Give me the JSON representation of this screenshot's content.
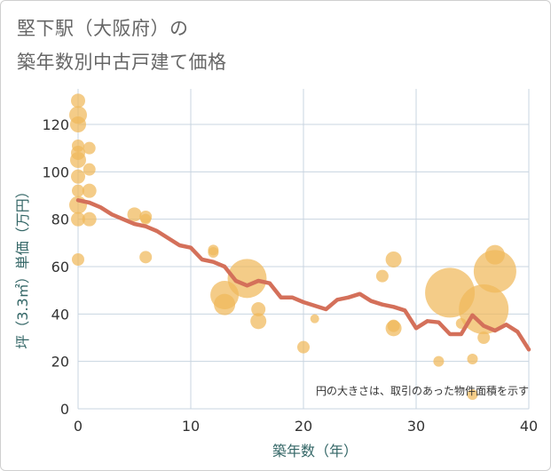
{
  "chart_data": {
    "type": "scatter",
    "title_line1": "堅下駅（大阪府）の",
    "title_line2": "築年数別中古戸建て価格",
    "xlabel": "築年数（年）",
    "ylabel": "坪（3.3㎡）単価（万円）",
    "xlim": [
      0,
      40
    ],
    "ylim": [
      0,
      135
    ],
    "xticks": [
      0,
      10,
      20,
      30,
      40
    ],
    "yticks": [
      0,
      20,
      40,
      60,
      80,
      100,
      120
    ],
    "note": "円の大きさは、取引のあった物件面積を示す",
    "colors": {
      "bubble": "#f0b85a",
      "line": "#d4705a",
      "grid": "#c8d4e0"
    },
    "bubbles": [
      {
        "x": 0,
        "y": 130,
        "s": 8
      },
      {
        "x": 0,
        "y": 124,
        "s": 10
      },
      {
        "x": 0,
        "y": 120,
        "s": 9
      },
      {
        "x": 0,
        "y": 111,
        "s": 7
      },
      {
        "x": 0,
        "y": 108,
        "s": 8
      },
      {
        "x": 0,
        "y": 105,
        "s": 9
      },
      {
        "x": 0,
        "y": 98,
        "s": 8
      },
      {
        "x": 0,
        "y": 92,
        "s": 7
      },
      {
        "x": 0,
        "y": 86,
        "s": 10
      },
      {
        "x": 0,
        "y": 80,
        "s": 8
      },
      {
        "x": 0,
        "y": 63,
        "s": 7
      },
      {
        "x": 1,
        "y": 110,
        "s": 7
      },
      {
        "x": 1,
        "y": 101,
        "s": 7
      },
      {
        "x": 1,
        "y": 92,
        "s": 8
      },
      {
        "x": 1,
        "y": 80,
        "s": 8
      },
      {
        "x": 5,
        "y": 82,
        "s": 8
      },
      {
        "x": 6,
        "y": 81,
        "s": 7
      },
      {
        "x": 6,
        "y": 80,
        "s": 6
      },
      {
        "x": 6,
        "y": 64,
        "s": 7
      },
      {
        "x": 12,
        "y": 67,
        "s": 6
      },
      {
        "x": 12,
        "y": 66,
        "s": 6
      },
      {
        "x": 13,
        "y": 48,
        "s": 16
      },
      {
        "x": 13,
        "y": 44,
        "s": 12
      },
      {
        "x": 15,
        "y": 55,
        "s": 22
      },
      {
        "x": 16,
        "y": 42,
        "s": 8
      },
      {
        "x": 16,
        "y": 37,
        "s": 9
      },
      {
        "x": 20,
        "y": 26,
        "s": 7
      },
      {
        "x": 21,
        "y": 38,
        "s": 5
      },
      {
        "x": 27,
        "y": 56,
        "s": 7
      },
      {
        "x": 28,
        "y": 63,
        "s": 9
      },
      {
        "x": 28,
        "y": 35,
        "s": 7
      },
      {
        "x": 28,
        "y": 34,
        "s": 9
      },
      {
        "x": 32,
        "y": 20,
        "s": 6
      },
      {
        "x": 33,
        "y": 49,
        "s": 28
      },
      {
        "x": 34,
        "y": 36,
        "s": 6
      },
      {
        "x": 35,
        "y": 21,
        "s": 6
      },
      {
        "x": 35,
        "y": 6,
        "s": 6
      },
      {
        "x": 36,
        "y": 30,
        "s": 7
      },
      {
        "x": 36,
        "y": 42,
        "s": 28
      },
      {
        "x": 37,
        "y": 58,
        "s": 24
      },
      {
        "x": 37,
        "y": 65,
        "s": 11
      }
    ],
    "line": [
      {
        "x": 0,
        "y": 88
      },
      {
        "x": 1,
        "y": 87
      },
      {
        "x": 2,
        "y": 85
      },
      {
        "x": 3,
        "y": 82
      },
      {
        "x": 4,
        "y": 80
      },
      {
        "x": 5,
        "y": 78
      },
      {
        "x": 6,
        "y": 77
      },
      {
        "x": 7,
        "y": 75
      },
      {
        "x": 8,
        "y": 72
      },
      {
        "x": 9,
        "y": 69
      },
      {
        "x": 10,
        "y": 68
      },
      {
        "x": 11,
        "y": 63
      },
      {
        "x": 12,
        "y": 62
      },
      {
        "x": 13,
        "y": 60
      },
      {
        "x": 14,
        "y": 54
      },
      {
        "x": 15,
        "y": 52
      },
      {
        "x": 16,
        "y": 54
      },
      {
        "x": 17,
        "y": 53
      },
      {
        "x": 18,
        "y": 47
      },
      {
        "x": 19,
        "y": 47
      },
      {
        "x": 20,
        "y": 45
      },
      {
        "x": 21,
        "y": 43.5
      },
      {
        "x": 22,
        "y": 42
      },
      {
        "x": 23,
        "y": 46
      },
      {
        "x": 24,
        "y": 47
      },
      {
        "x": 25,
        "y": 48.5
      },
      {
        "x": 26,
        "y": 45.5
      },
      {
        "x": 27,
        "y": 44
      },
      {
        "x": 28,
        "y": 43
      },
      {
        "x": 29,
        "y": 41.5
      },
      {
        "x": 30,
        "y": 34
      },
      {
        "x": 31,
        "y": 37
      },
      {
        "x": 32,
        "y": 36.5
      },
      {
        "x": 33,
        "y": 31.5
      },
      {
        "x": 34,
        "y": 31.5
      },
      {
        "x": 35,
        "y": 39.5
      },
      {
        "x": 36,
        "y": 35
      },
      {
        "x": 37,
        "y": 33
      },
      {
        "x": 38,
        "y": 35.5
      },
      {
        "x": 39,
        "y": 32.5
      },
      {
        "x": 40,
        "y": 25
      }
    ]
  }
}
